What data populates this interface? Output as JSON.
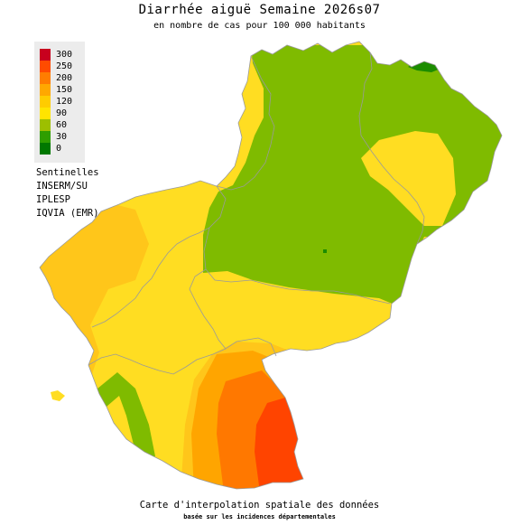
{
  "title": "Diarrhée aiguë Semaine 2026s07",
  "subtitle": "en nombre de cas pour 100 000 habitants",
  "legend": {
    "labels": [
      "300",
      "250",
      "200",
      "150",
      "120",
      "90",
      "60",
      "30",
      "0"
    ],
    "colors": [
      "#c8001e",
      "#ff4b00",
      "#ff7d00",
      "#ffa800",
      "#ffcc00",
      "#ffe400",
      "#9dbf00",
      "#2f9e00",
      "#007800"
    ]
  },
  "sources": [
    "Sentinelles",
    "INSERM/SU",
    "IPLESP",
    "IQVIA (EMR)"
  ],
  "footer": {
    "line1": "Carte d'interpolation spatiale des données",
    "line2": "basée sur les incidences départementales"
  },
  "colors": {
    "green_zone": "#7fbb00",
    "yellow_zone": "#ffdd22",
    "light_orange": "#ffc61a",
    "orange": "#ffa500",
    "dark_orange": "#ff7800",
    "red_orange": "#ff4400",
    "dark_green": "#1c8c00",
    "border": "#9a9a9a"
  }
}
